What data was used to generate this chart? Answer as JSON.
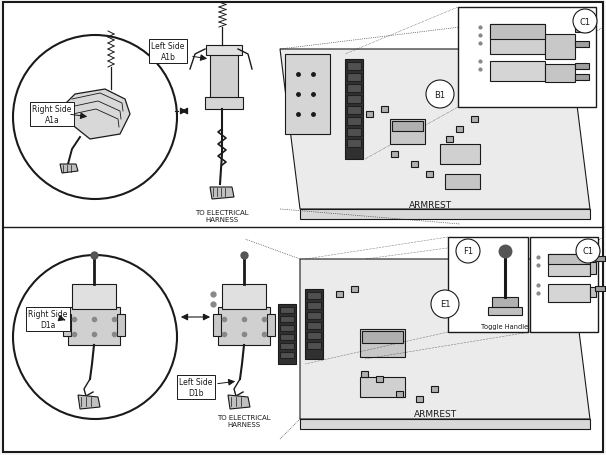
{
  "bg_color": "#f5f5f5",
  "line_color": "#1a1a1a",
  "text_color": "#1a1a1a",
  "fig_width": 6.06,
  "fig_height": 4.56,
  "dpi": 100,
  "labels": {
    "right_side_a1a": "Right Side\nA1a",
    "left_side_a1b": "Left Side\nA1b",
    "b1": "B1",
    "c1": "C1",
    "armrest_top": "ARMREST",
    "harness_top": "TO ELECTRICAL\nHARNESS",
    "right_side_d1a": "Right Side\nD1a",
    "left_side_d1b": "Left Side\nD1b",
    "e1": "E1",
    "f1": "F1",
    "toggle_handle": "Toggle Handle",
    "armrest_bot": "ARMREST",
    "harness_bot": "TO ELECTRICAL\nHARNESS"
  }
}
